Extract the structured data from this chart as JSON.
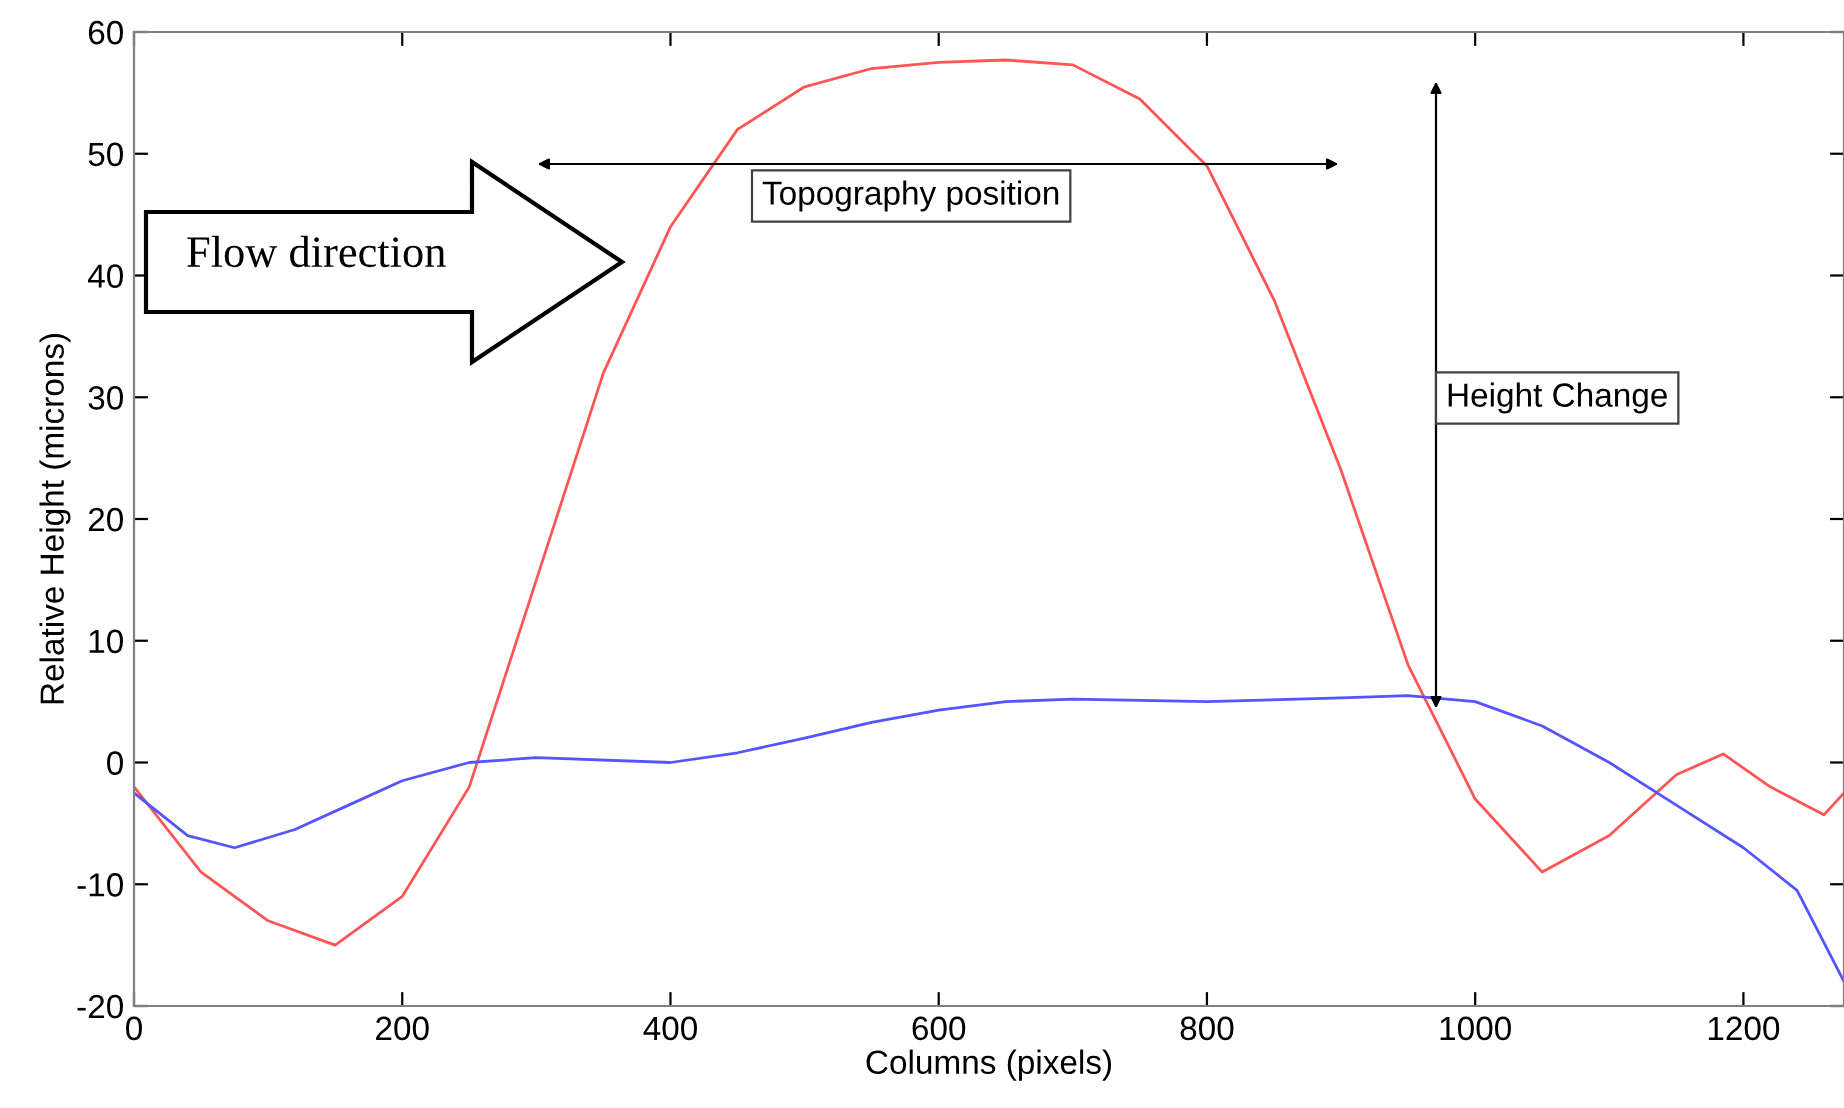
{
  "chart_data": {
    "type": "line",
    "xlabel": "Columns (pixels)",
    "ylabel": "Relative Height (microns)",
    "xlim": [
      0,
      1275
    ],
    "ylim": [
      -20,
      60
    ],
    "xticks": [
      0,
      200,
      400,
      600,
      800,
      1000,
      1200
    ],
    "yticks": [
      -20,
      -10,
      0,
      10,
      20,
      30,
      40,
      50,
      60
    ],
    "grid": false,
    "legend": false,
    "annotations": [
      "Flow direction",
      "Topography position",
      "Height Change"
    ],
    "series": [
      {
        "color": "#ff5555",
        "x": [
          0,
          50,
          100,
          150,
          200,
          250,
          300,
          350,
          400,
          450,
          500,
          550,
          600,
          650,
          700,
          750,
          800,
          850,
          900,
          950,
          1000,
          1050,
          1100,
          1150,
          1185,
          1220,
          1260,
          1275
        ],
        "values": [
          -2,
          -9,
          -13,
          -15,
          -11,
          -2,
          15,
          32,
          44,
          52,
          55.5,
          57,
          57.5,
          57.7,
          57.3,
          54.5,
          49,
          38,
          24,
          8,
          -3,
          -9,
          -6,
          -1,
          0.7,
          -2,
          -4.3,
          -2.5
        ]
      },
      {
        "color": "#5555ff",
        "x": [
          0,
          40,
          75,
          120,
          160,
          200,
          250,
          300,
          400,
          450,
          500,
          550,
          600,
          650,
          700,
          800,
          900,
          950,
          1000,
          1050,
          1100,
          1150,
          1200,
          1240,
          1275
        ],
        "values": [
          -2.5,
          -6,
          -7,
          -5.5,
          -3.5,
          -1.5,
          0,
          0.4,
          0,
          0.8,
          2,
          3.3,
          4.3,
          5,
          5.2,
          5,
          5.3,
          5.5,
          5,
          3,
          0,
          -3.5,
          -7,
          -10.5,
          -18
        ]
      }
    ]
  }
}
